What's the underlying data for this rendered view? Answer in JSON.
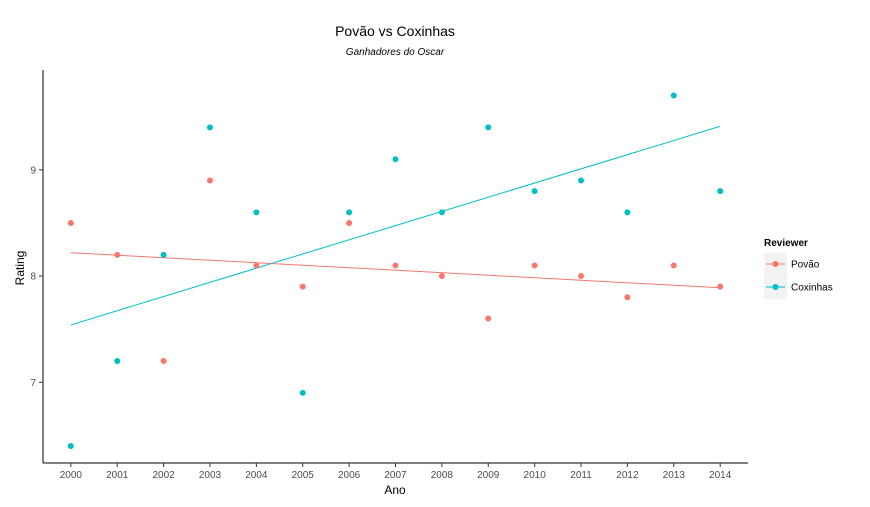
{
  "chart_data": {
    "type": "scatter",
    "title": "Povão vs Coxinhas",
    "subtitle": "Ganhadores do Oscar",
    "xlabel": "Ano",
    "ylabel": "Rating",
    "x": [
      2000,
      2001,
      2002,
      2003,
      2004,
      2005,
      2006,
      2007,
      2008,
      2009,
      2010,
      2011,
      2012,
      2013,
      2014
    ],
    "xlim": [
      1999.4,
      2014.6
    ],
    "ylim": [
      6.24,
      9.94
    ],
    "y_ticks": [
      7,
      8,
      9
    ],
    "grid": false,
    "legend": {
      "title": "Reviewer",
      "position": "right"
    },
    "series": [
      {
        "name": "Povão",
        "color": "#F8766D",
        "values": [
          8.5,
          8.2,
          7.2,
          8.9,
          8.1,
          7.9,
          8.5,
          8.1,
          8.0,
          7.6,
          8.1,
          8.0,
          7.8,
          8.1,
          7.9
        ],
        "trend": [
          8.22,
          7.89
        ]
      },
      {
        "name": "Coxinhas",
        "color": "#00BFC4",
        "values": [
          6.4,
          7.2,
          8.2,
          9.4,
          8.6,
          6.9,
          8.6,
          9.1,
          8.6,
          9.4,
          8.8,
          8.9,
          8.6,
          9.7,
          8.8
        ],
        "trend": [
          7.54,
          9.41
        ]
      }
    ]
  }
}
